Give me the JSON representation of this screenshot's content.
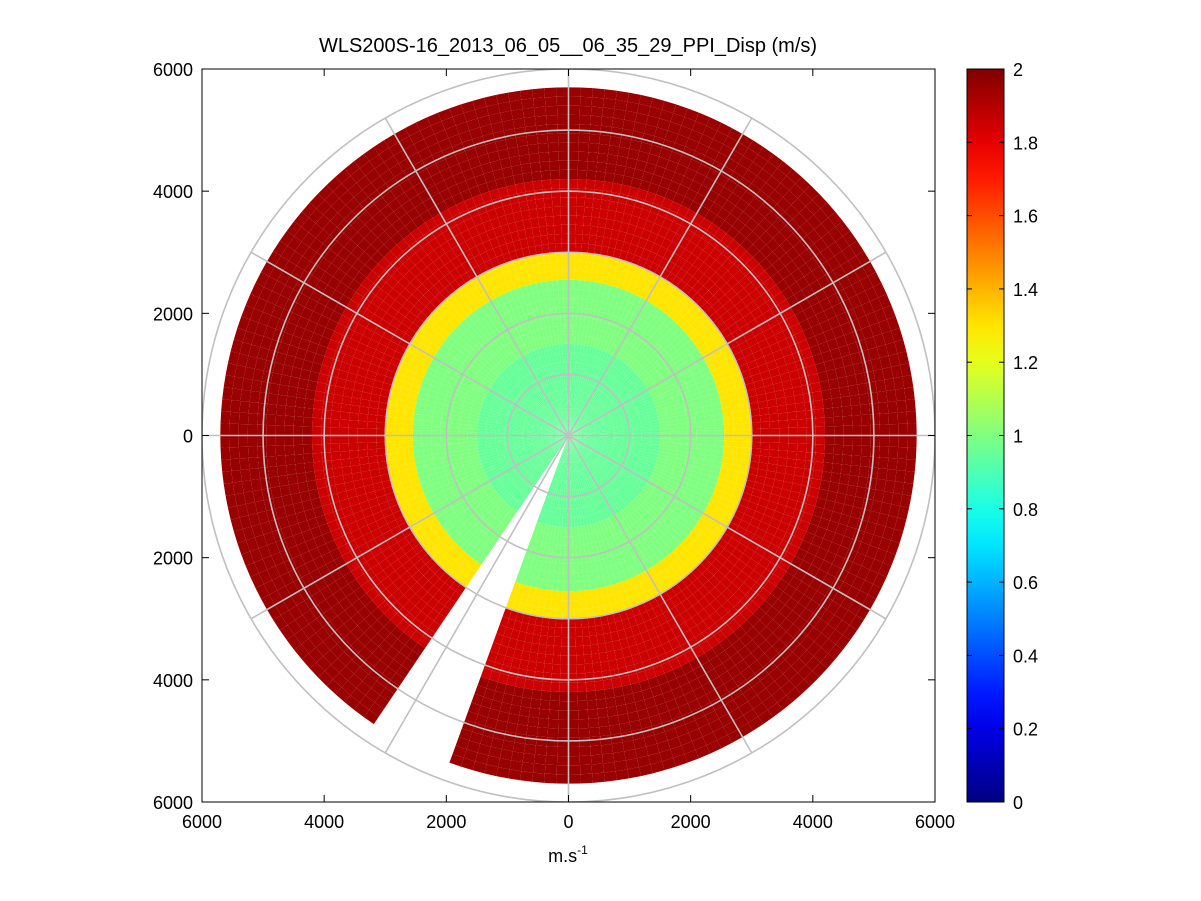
{
  "chart_data": {
    "type": "heatmap",
    "subtype": "polar-ppi-scatter",
    "title": "WLS200S-16_2013_06_05__06_35_29_PPI_Disp (m/s)",
    "xlabel_base": "m.s",
    "xlabel_sup": "-1",
    "ylabel": "",
    "xlim": [
      -6000,
      6000
    ],
    "ylim": [
      -6000,
      6000
    ],
    "x_ticks": [
      -6000,
      -4000,
      -2000,
      0,
      2000,
      4000,
      6000
    ],
    "x_tick_labels": [
      "6000",
      "4000",
      "2000",
      "0",
      "2000",
      "4000",
      "6000"
    ],
    "y_ticks": [
      6000,
      4000,
      2000,
      0,
      -2000,
      -4000,
      -6000
    ],
    "y_tick_labels": [
      "6000",
      "4000",
      "2000",
      "0",
      "2000",
      "4000",
      "6000"
    ],
    "polar_grid_ranges": [
      1000,
      2000,
      3000,
      4000,
      5000,
      6000
    ],
    "polar_grid_angles_deg": [
      0,
      30,
      60,
      90,
      120,
      150,
      180,
      210,
      240,
      270,
      300,
      330
    ],
    "gaps_deg": [
      {
        "from": 359,
        "to": 1
      },
      {
        "from": 208,
        "to": 213
      },
      {
        "from": 200,
        "to": 207
      }
    ],
    "value_by_range": [
      {
        "range": [
          0,
          1500
        ],
        "value": 0.95
      },
      {
        "range": [
          1500,
          2500
        ],
        "value": 1.0
      },
      {
        "range": [
          2500,
          3000
        ],
        "value": 1.3
      },
      {
        "range": [
          3000,
          4200
        ],
        "value": 1.85
      },
      {
        "range": [
          4200,
          5600
        ],
        "value": 1.95
      }
    ],
    "max_range": 5600,
    "colorbar": {
      "colormap": "jet",
      "min": 0,
      "max": 2,
      "ticks": [
        0,
        0.2,
        0.4,
        0.6,
        0.8,
        1,
        1.2,
        1.4,
        1.6,
        1.8,
        2
      ],
      "tick_labels": [
        "0",
        "0.2",
        "0.4",
        "0.6",
        "0.8",
        "1",
        "1.2",
        "1.4",
        "1.6",
        "1.8",
        "2"
      ]
    }
  }
}
